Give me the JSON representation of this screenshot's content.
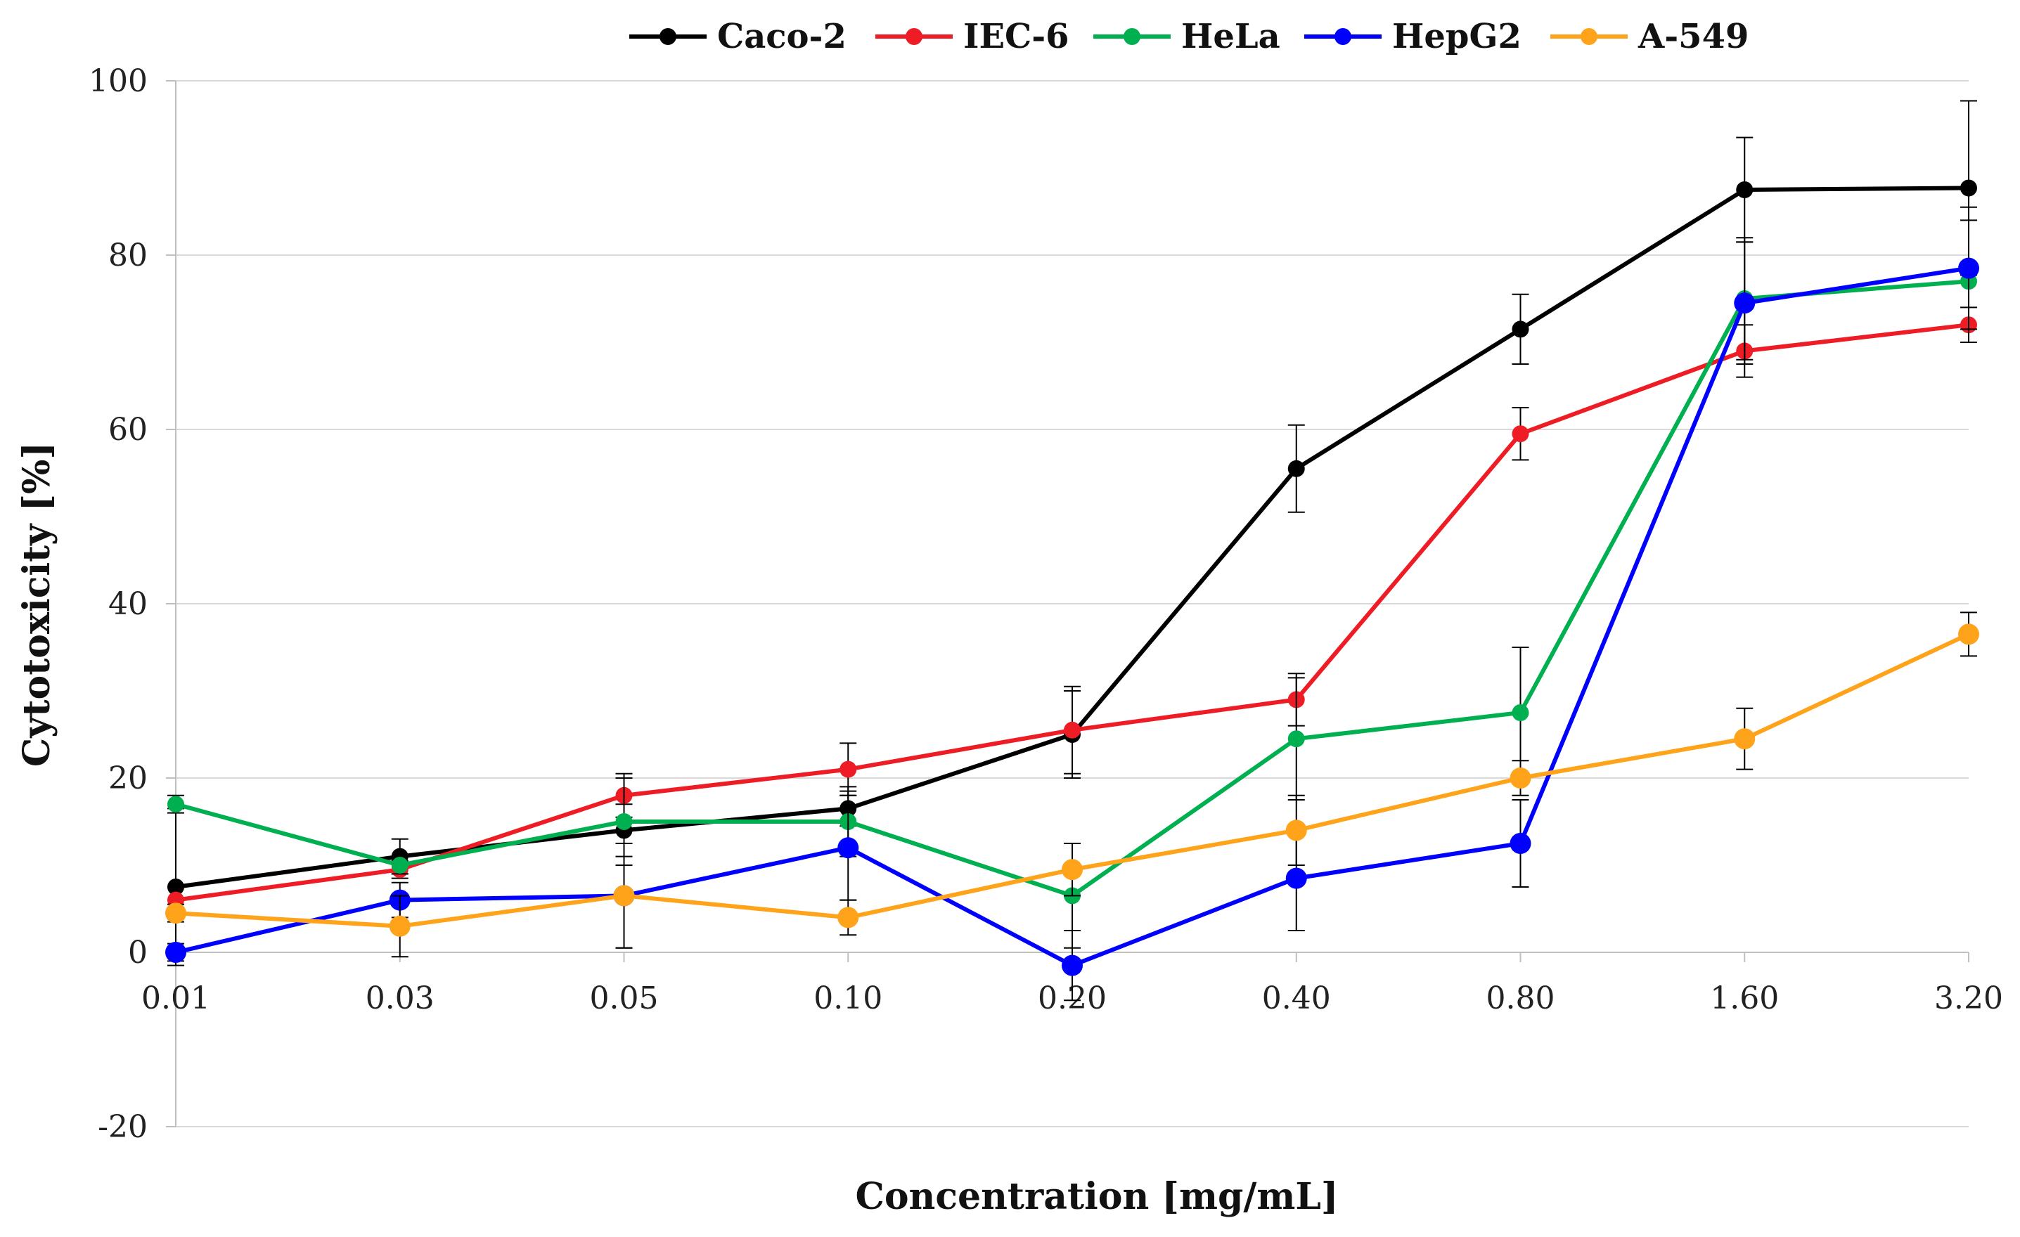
{
  "chart_data": {
    "type": "line",
    "title": "",
    "xlabel": "Concentration [mg/mL]",
    "ylabel": "Cytotoxicity [%]",
    "ylim": [
      -20,
      100
    ],
    "yticks": [
      "-20",
      "0",
      "20",
      "40",
      "60",
      "80",
      "100"
    ],
    "ytick_values": [
      -20,
      0,
      20,
      40,
      60,
      80,
      100
    ],
    "categories": [
      "0.01",
      "0.03",
      "0.05",
      "0.10",
      "0.20",
      "0.40",
      "0.80",
      "1.60",
      "3.20"
    ],
    "grid": true,
    "legend_position": "top",
    "series": [
      {
        "name": "Caco-2",
        "color": "#000000",
        "values": [
          7.5,
          11,
          14,
          16.5,
          25,
          55.5,
          71.5,
          87.5,
          87.7
        ],
        "errors": [
          9,
          2,
          3,
          2,
          5,
          5,
          4,
          6,
          10
        ]
      },
      {
        "name": "IEC-6",
        "color": "#ee1c25",
        "values": [
          6,
          9.5,
          18,
          21,
          25.5,
          29,
          59.5,
          69,
          72
        ],
        "errors": [
          1.5,
          1,
          2.5,
          3,
          5,
          3,
          3,
          3,
          2
        ]
      },
      {
        "name": "HeLa",
        "color": "#00b050",
        "values": [
          17,
          10,
          15,
          15,
          6.5,
          24.5,
          27.5,
          75,
          77
        ],
        "errors": [
          1,
          1,
          5,
          4,
          6,
          7,
          7.5,
          7,
          7
        ]
      },
      {
        "name": "HepG2",
        "color": "#0000ff",
        "values": [
          0,
          6,
          6.5,
          12,
          -1.5,
          8.5,
          12.5,
          74.5,
          78.5
        ],
        "errors": [
          1,
          2,
          6,
          6,
          4,
          6,
          5,
          7,
          7
        ]
      },
      {
        "name": "A-549",
        "color": "#ffa31a",
        "values": [
          4.5,
          3,
          6.5,
          4,
          9.5,
          14,
          20,
          24.5,
          36.5
        ],
        "errors": [
          1,
          3.5,
          6,
          2,
          3,
          4,
          2,
          3.5,
          2.5
        ]
      }
    ]
  }
}
